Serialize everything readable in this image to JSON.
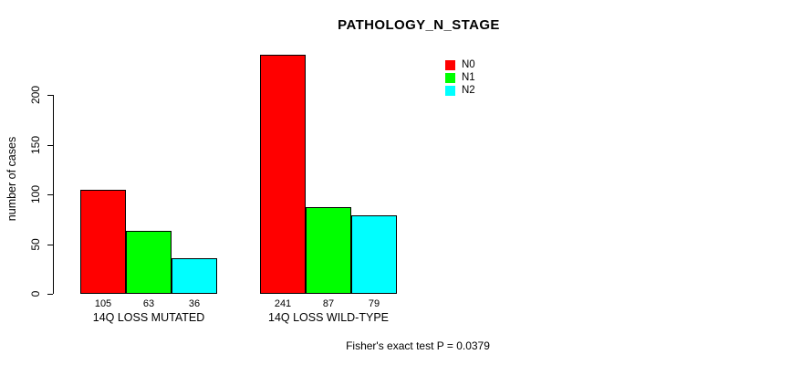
{
  "chart_data": {
    "type": "bar",
    "title": "PATHOLOGY_N_STAGE",
    "ylabel": "number of cases",
    "xlabel": "",
    "categories": [
      "14Q LOSS MUTATED",
      "14Q LOSS WILD-TYPE"
    ],
    "series": [
      {
        "name": "N0",
        "color": "#ff0000",
        "values": [
          105,
          241
        ]
      },
      {
        "name": "N1",
        "color": "#00ff00",
        "values": [
          63,
          87
        ]
      },
      {
        "name": "N2",
        "color": "#00ffff",
        "values": [
          36,
          79
        ]
      }
    ],
    "yticks": [
      0,
      50,
      100,
      150,
      200
    ],
    "ylim": [
      0,
      245
    ],
    "grid": false,
    "bar_value_labels_shown": true,
    "legend": {
      "position": "top-right",
      "entries": [
        "N0",
        "N1",
        "N2"
      ]
    },
    "annotation": "Fisher's exact test P = 0.0379"
  }
}
